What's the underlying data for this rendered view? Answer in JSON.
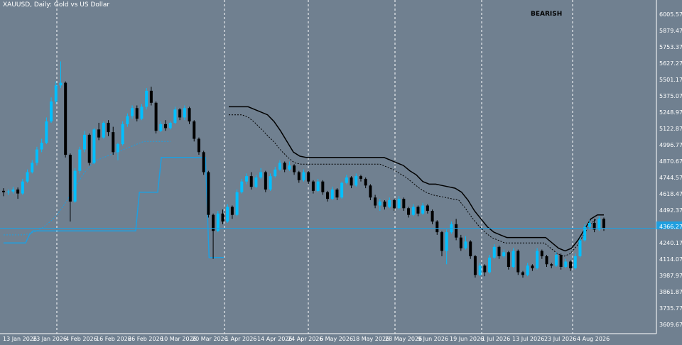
{
  "chart_title": "XAUUSD, Daily:  Gold vs US Dollar",
  "signal_text": "BEARISH",
  "colors": {
    "background": "#708090",
    "bull_candle": "#00BFFF",
    "bear_candle": "#000000",
    "grid": "#FFFFFF",
    "upper_channel": "#000000",
    "lower_channel": "#1E9FE0",
    "current_price": "#1E9FE0"
  },
  "chart_data": {
    "type": "candlestick",
    "price_axis_labels": [
      "6005.57",
      "5879.47",
      "5753.37",
      "5627.27",
      "5501.17",
      "5375.07",
      "5248.97",
      "5122.87",
      "4996.77",
      "4870.67",
      "4744.57",
      "4618.47",
      "4492.37",
      "4366.27",
      "4240.17",
      "4114.07",
      "3987.97",
      "3861.87",
      "3735.77",
      "3609.67"
    ],
    "date_axis_labels": [
      "13 Jan 2026",
      "23 Jan 2026",
      "4 Feb 2026",
      "16 Feb 2026",
      "26 Feb 2026",
      "10 Mar 2026",
      "20 Mar 2026",
      "1 Apr 2026",
      "14 Apr 2026",
      "24 Apr 2026",
      "6 May 2026",
      "18 May 2026",
      "28 May 2026",
      "9 Jun 2026",
      "19 Jun 2026",
      "1 Jul 2026",
      "13 Jul 2026",
      "23 Jul 2026",
      "4 Aug 2026"
    ],
    "ylim": [
      3560,
      6060
    ],
    "candles": [
      [
        4630,
        4650,
        4590,
        4620
      ],
      [
        4620,
        4640,
        4600,
        4625
      ],
      [
        4625,
        4660,
        4610,
        4640
      ],
      [
        4640,
        4655,
        4570,
        4610
      ],
      [
        4610,
        4720,
        4600,
        4700
      ],
      [
        4700,
        4790,
        4690,
        4770
      ],
      [
        4770,
        4860,
        4760,
        4840
      ],
      [
        4840,
        4960,
        4820,
        4940
      ],
      [
        4940,
        5020,
        4920,
        4990
      ],
      [
        4990,
        5180,
        4980,
        5150
      ],
      [
        5150,
        5330,
        5140,
        5300
      ],
      [
        5300,
        5450,
        5280,
        5420
      ],
      [
        5420,
        5600,
        5400,
        5440
      ],
      [
        5440,
        5450,
        4880,
        4900
      ],
      [
        4900,
        4910,
        4400,
        4550
      ],
      [
        4550,
        4800,
        4540,
        4780
      ],
      [
        4780,
        4960,
        4760,
        4940
      ],
      [
        4940,
        5080,
        4920,
        5050
      ],
      [
        5050,
        5060,
        4820,
        4840
      ],
      [
        4840,
        5100,
        4830,
        5090
      ],
      [
        5090,
        5140,
        5010,
        5030
      ],
      [
        5030,
        5150,
        5020,
        5140
      ],
      [
        5140,
        5160,
        5040,
        5070
      ],
      [
        5070,
        5110,
        4900,
        4920
      ],
      [
        4920,
        4990,
        4860,
        4980
      ],
      [
        4980,
        5150,
        4970,
        5130
      ],
      [
        5130,
        5210,
        5110,
        5190
      ],
      [
        5190,
        5270,
        5170,
        5250
      ],
      [
        5250,
        5270,
        5150,
        5170
      ],
      [
        5170,
        5280,
        5160,
        5260
      ],
      [
        5260,
        5400,
        5240,
        5380
      ],
      [
        5380,
        5410,
        5270,
        5290
      ],
      [
        5290,
        5300,
        5060,
        5080
      ],
      [
        5080,
        5150,
        5070,
        5130
      ],
      [
        5130,
        5160,
        5080,
        5100
      ],
      [
        5100,
        5150,
        5090,
        5140
      ],
      [
        5140,
        5260,
        5130,
        5240
      ],
      [
        5240,
        5250,
        5160,
        5180
      ],
      [
        5180,
        5270,
        5160,
        5250
      ],
      [
        5250,
        5260,
        5130,
        5150
      ],
      [
        5150,
        5160,
        5000,
        5020
      ],
      [
        5020,
        5030,
        4900,
        4920
      ],
      [
        4920,
        4930,
        4750,
        4770
      ],
      [
        4770,
        4780,
        4430,
        4450
      ],
      [
        4450,
        4460,
        4120,
        4330
      ],
      [
        4330,
        4480,
        4320,
        4460
      ],
      [
        4460,
        4490,
        4380,
        4400
      ],
      [
        4400,
        4530,
        4390,
        4510
      ],
      [
        4510,
        4520,
        4420,
        4450
      ],
      [
        4450,
        4640,
        4440,
        4620
      ],
      [
        4620,
        4720,
        4610,
        4700
      ],
      [
        4700,
        4760,
        4680,
        4740
      ],
      [
        4740,
        4770,
        4640,
        4660
      ],
      [
        4660,
        4750,
        4650,
        4730
      ],
      [
        4730,
        4800,
        4720,
        4770
      ],
      [
        4770,
        4780,
        4620,
        4640
      ],
      [
        4640,
        4760,
        4630,
        4740
      ],
      [
        4740,
        4810,
        4730,
        4790
      ],
      [
        4790,
        4860,
        4780,
        4840
      ],
      [
        4840,
        4850,
        4770,
        4790
      ],
      [
        4790,
        4850,
        4780,
        4820
      ],
      [
        4820,
        4830,
        4750,
        4770
      ],
      [
        4770,
        4780,
        4690,
        4710
      ],
      [
        4710,
        4790,
        4700,
        4770
      ],
      [
        4770,
        4780,
        4680,
        4700
      ],
      [
        4700,
        4710,
        4610,
        4630
      ],
      [
        4630,
        4720,
        4620,
        4700
      ],
      [
        4700,
        4710,
        4600,
        4620
      ],
      [
        4620,
        4630,
        4550,
        4570
      ],
      [
        4570,
        4660,
        4560,
        4640
      ],
      [
        4640,
        4650,
        4560,
        4580
      ],
      [
        4580,
        4700,
        4570,
        4690
      ],
      [
        4690,
        4750,
        4680,
        4730
      ],
      [
        4730,
        4740,
        4650,
        4670
      ],
      [
        4670,
        4760,
        4660,
        4740
      ],
      [
        4740,
        4750,
        4700,
        4720
      ],
      [
        4720,
        4730,
        4650,
        4670
      ],
      [
        4670,
        4680,
        4560,
        4580
      ],
      [
        4580,
        4600,
        4500,
        4520
      ],
      [
        4520,
        4570,
        4480,
        4550
      ],
      [
        4550,
        4560,
        4490,
        4510
      ],
      [
        4510,
        4580,
        4500,
        4560
      ],
      [
        4560,
        4570,
        4480,
        4500
      ],
      [
        4500,
        4590,
        4490,
        4570
      ],
      [
        4570,
        4580,
        4480,
        4500
      ],
      [
        4500,
        4510,
        4430,
        4450
      ],
      [
        4450,
        4530,
        4440,
        4510
      ],
      [
        4510,
        4520,
        4440,
        4460
      ],
      [
        4460,
        4540,
        4450,
        4520
      ],
      [
        4520,
        4530,
        4460,
        4480
      ],
      [
        4480,
        4490,
        4380,
        4400
      ],
      [
        4400,
        4410,
        4300,
        4320
      ],
      [
        4320,
        4330,
        4140,
        4180
      ],
      [
        4180,
        4340,
        4080,
        4320
      ],
      [
        4320,
        4400,
        4310,
        4380
      ],
      [
        4380,
        4420,
        4260,
        4280
      ],
      [
        4280,
        4300,
        4180,
        4200
      ],
      [
        4200,
        4290,
        4190,
        4250
      ],
      [
        4250,
        4260,
        4120,
        4140
      ],
      [
        4140,
        4150,
        3980,
        4000
      ],
      [
        4000,
        4090,
        3990,
        4070
      ],
      [
        4070,
        4080,
        3990,
        4020
      ],
      [
        4020,
        4150,
        4010,
        4130
      ],
      [
        4130,
        4230,
        4120,
        4210
      ],
      [
        4210,
        4220,
        4120,
        4140
      ],
      [
        4140,
        4190,
        4130,
        4170
      ],
      [
        4170,
        4180,
        4040,
        4060
      ],
      [
        4060,
        4200,
        4050,
        4180
      ],
      [
        4180,
        4190,
        4000,
        4020
      ],
      [
        4020,
        4030,
        3980,
        4000
      ],
      [
        4000,
        4090,
        3990,
        4070
      ],
      [
        4070,
        4080,
        4030,
        4050
      ],
      [
        4050,
        4200,
        4040,
        4180
      ],
      [
        4180,
        4190,
        4120,
        4140
      ],
      [
        4140,
        4150,
        4060,
        4080
      ],
      [
        4080,
        4090,
        4050,
        4070
      ],
      [
        4070,
        4170,
        4060,
        4150
      ],
      [
        4150,
        4160,
        4040,
        4060
      ],
      [
        4060,
        4120,
        4050,
        4100
      ],
      [
        4100,
        4110,
        4030,
        4050
      ],
      [
        4050,
        4160,
        4040,
        4140
      ],
      [
        4140,
        4280,
        4130,
        4260
      ],
      [
        4260,
        4380,
        4250,
        4360
      ],
      [
        4360,
        4410,
        4340,
        4390
      ],
      [
        4390,
        4420,
        4320,
        4340
      ],
      [
        4340,
        4440,
        4330,
        4420
      ],
      [
        4420,
        4430,
        4330,
        4350
      ]
    ],
    "upper_channel": [
      5260,
      5260,
      5260,
      5260,
      5240,
      5220,
      5200,
      5150,
      5080,
      5000,
      4920,
      4890,
      4880,
      4880,
      4880,
      4880,
      4880,
      4880,
      4880,
      4880,
      4880,
      4880,
      4880,
      4880,
      4880,
      4860,
      4840,
      4820,
      4780,
      4750,
      4700,
      4680,
      4680,
      4670,
      4660,
      4650,
      4620,
      4560,
      4480,
      4420,
      4360,
      4320,
      4300,
      4280,
      4280,
      4280,
      4280,
      4280,
      4280,
      4280,
      4240,
      4200,
      4180,
      4200,
      4260,
      4340,
      4420,
      4450,
      4450
    ],
    "upper_dotted": [
      5200,
      5200,
      5200,
      5180,
      5140,
      5090,
      5040,
      4990,
      4930,
      4880,
      4840,
      4830,
      4830,
      4830,
      4830,
      4830,
      4830,
      4830,
      4830,
      4830,
      4830,
      4830,
      4830,
      4830,
      4810,
      4790,
      4760,
      4730,
      4690,
      4650,
      4620,
      4600,
      4590,
      4580,
      4570,
      4560,
      4500,
      4430,
      4370,
      4320,
      4280,
      4260,
      4240,
      4240,
      4240,
      4240,
      4240,
      4240,
      4240,
      4200,
      4160,
      4140,
      4160,
      4220,
      4300,
      4380,
      4420
    ],
    "lower_channel": [
      4240,
      4240,
      4240,
      4240,
      4240,
      4240,
      4240,
      4300,
      4330,
      4330,
      4330,
      4330,
      4330,
      4330,
      4330,
      4330,
      4330,
      4330,
      4330,
      4330,
      4330,
      4330,
      4330,
      4330,
      4330,
      4330,
      4330,
      4330,
      4330,
      4330,
      4330,
      4330,
      4330,
      4330,
      4330,
      4330,
      4330,
      4620,
      4620,
      4620,
      4620,
      4620,
      4620,
      4880,
      4880,
      4880,
      4880,
      4880,
      4880,
      4880,
      4880,
      4880,
      4880,
      4880,
      4880,
      4880,
      4130,
      4130,
      4130,
      4130,
      4130
    ],
    "lower_dotted": [
      4300,
      4300,
      4300,
      4300,
      4310,
      4330,
      4360,
      4400,
      4450,
      4520,
      4600,
      4680,
      4760,
      4820,
      4860,
      4880,
      4900,
      4920,
      4940,
      4960,
      4980,
      5000,
      5000,
      5000,
      5000,
      5000
    ],
    "current_price": 4350
  }
}
